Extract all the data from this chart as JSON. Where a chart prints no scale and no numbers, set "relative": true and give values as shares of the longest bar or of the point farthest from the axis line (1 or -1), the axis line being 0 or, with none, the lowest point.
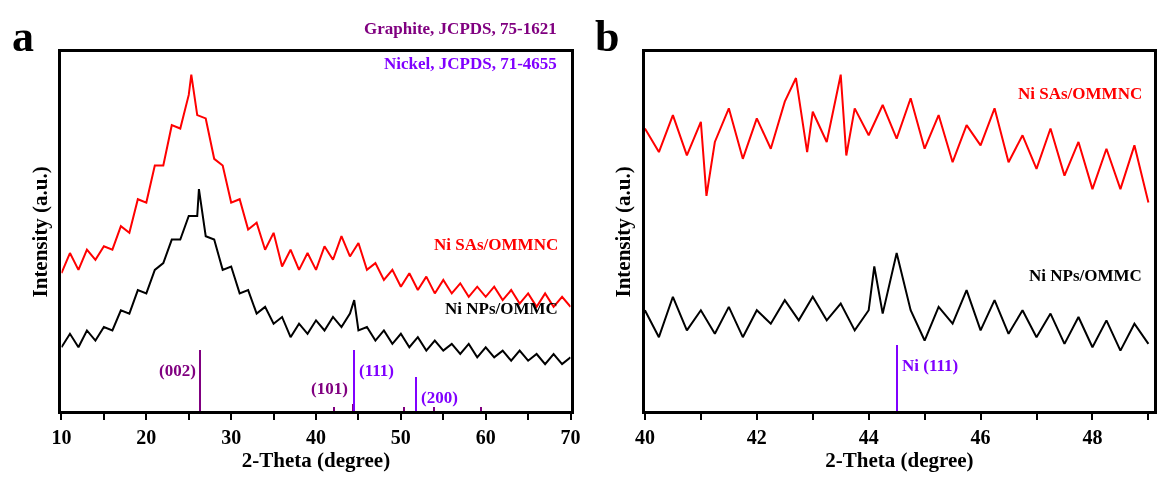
{
  "chart_data": [
    {
      "type": "line",
      "xlabel": "2-Theta (degree)",
      "ylabel": "Intensity (a.u.)",
      "relative": true,
      "legend": false,
      "marker": "none",
      "line_style": "solid",
      "xlim": [
        10,
        70
      ],
      "xticks": [
        10,
        {
          "value": 15,
          "label": null
        },
        20,
        {
          "value": 25,
          "label": null
        },
        30,
        {
          "value": 35,
          "label": null
        },
        40,
        {
          "value": 45,
          "label": null
        },
        50,
        {
          "value": 55,
          "label": null
        },
        60,
        {
          "value": 65,
          "label": null
        },
        70
      ],
      "annotations": [
        "a",
        {
          "text": "(002)",
          "x": 26.4,
          "y": 0.18
        },
        {
          "text": "(101)",
          "x": 44.4,
          "y": 0.02
        },
        {
          "text": "(111)",
          "x": 44.5,
          "y": 0.18
        },
        {
          "text": "(200)",
          "x": 51.8,
          "y": 0.1
        }
      ],
      "series": [
        {
          "name": "Ni SAs/OMMNC",
          "color": "#ff0000",
          "x": [
            10,
            11,
            12,
            13,
            14,
            15,
            16,
            17,
            18,
            19,
            20,
            21,
            22,
            23,
            24,
            25,
            25.3,
            26,
            27,
            28,
            29,
            30,
            31,
            32,
            33,
            34,
            35,
            36,
            37,
            38,
            39,
            40,
            41,
            42,
            43,
            44,
            45,
            46,
            47,
            48,
            49,
            50,
            51,
            52,
            53,
            54,
            55,
            56,
            57,
            58,
            59,
            60,
            61,
            62,
            63,
            64,
            65,
            66,
            67,
            68,
            69,
            70
          ],
          "values": [
            0.41,
            0.47,
            0.42,
            0.48,
            0.45,
            0.49,
            0.48,
            0.55,
            0.53,
            0.63,
            0.62,
            0.73,
            0.73,
            0.85,
            0.84,
            0.94,
            1.0,
            0.88,
            0.87,
            0.75,
            0.73,
            0.62,
            0.63,
            0.54,
            0.56,
            0.48,
            0.53,
            0.43,
            0.48,
            0.42,
            0.47,
            0.42,
            0.49,
            0.45,
            0.52,
            0.46,
            0.5,
            0.42,
            0.44,
            0.39,
            0.42,
            0.37,
            0.41,
            0.36,
            0.4,
            0.35,
            0.39,
            0.35,
            0.38,
            0.34,
            0.37,
            0.34,
            0.37,
            0.33,
            0.36,
            0.32,
            0.35,
            0.31,
            0.35,
            0.31,
            0.34,
            0.31
          ]
        },
        {
          "name": "Ni NPs/OMMC",
          "color": "#000000",
          "x": [
            10,
            11,
            12,
            13,
            14,
            15,
            16,
            17,
            18,
            19,
            20,
            21,
            22,
            23,
            24,
            25,
            26,
            26.2,
            27,
            28,
            29,
            30,
            31,
            32,
            33,
            34,
            35,
            36,
            37,
            38,
            39,
            40,
            41,
            42,
            43,
            44,
            44.5,
            45,
            46,
            47,
            48,
            49,
            50,
            51,
            52,
            53,
            54,
            55,
            56,
            57,
            58,
            59,
            60,
            61,
            62,
            63,
            64,
            65,
            66,
            67,
            68,
            69,
            70
          ],
          "values": [
            0.19,
            0.23,
            0.19,
            0.24,
            0.21,
            0.25,
            0.24,
            0.3,
            0.29,
            0.36,
            0.35,
            0.42,
            0.44,
            0.51,
            0.51,
            0.58,
            0.58,
            0.66,
            0.52,
            0.51,
            0.42,
            0.43,
            0.35,
            0.36,
            0.29,
            0.31,
            0.26,
            0.28,
            0.22,
            0.26,
            0.23,
            0.27,
            0.24,
            0.28,
            0.25,
            0.29,
            0.33,
            0.24,
            0.25,
            0.21,
            0.24,
            0.2,
            0.23,
            0.19,
            0.22,
            0.18,
            0.21,
            0.18,
            0.2,
            0.17,
            0.2,
            0.16,
            0.19,
            0.16,
            0.18,
            0.15,
            0.18,
            0.15,
            0.17,
            0.14,
            0.17,
            0.14,
            0.16
          ]
        },
        {
          "type": "bar",
          "name": "Graphite, JCPDS, 75-1621",
          "color": "#800080",
          "x": [
            26.4,
            42.2,
            44.4,
            50.4,
            54.0,
            59.5
          ],
          "values": [
            0.18,
            0.01,
            0.02,
            0.01,
            0.01,
            0.01
          ]
        },
        {
          "type": "bar",
          "name": "Nickel, JCPDS, 71-4655",
          "color": "#8000ff",
          "x": [
            44.5,
            51.8
          ],
          "values": [
            0.18,
            0.1
          ]
        }
      ]
    },
    {
      "type": "line",
      "xlabel": "2-Theta (degree)",
      "ylabel": "Intensity (a.u.)",
      "relative": true,
      "legend": false,
      "marker": "none",
      "line_style": "solid",
      "xlim": [
        40,
        49.1
      ],
      "xticks": [
        40,
        {
          "value": 41,
          "label": null
        },
        42,
        {
          "value": 43,
          "label": null
        },
        44,
        {
          "value": 45,
          "label": null
        },
        46,
        {
          "value": 47,
          "label": null
        },
        48,
        {
          "value": 49,
          "label": null
        }
      ],
      "annotations": [
        "b",
        {
          "text": "Ni (111)",
          "x": 44.5,
          "y": 0.195
        }
      ],
      "series": [
        {
          "name": "Ni SAs/OMMNC",
          "color": "#ff0000",
          "x": [
            40,
            40.25,
            40.5,
            40.75,
            41,
            41.1,
            41.25,
            41.5,
            41.75,
            42,
            42.25,
            42.5,
            42.7,
            42.9,
            43,
            43.25,
            43.5,
            43.6,
            43.75,
            44,
            44.25,
            44.5,
            44.75,
            45,
            45.25,
            45.5,
            45.75,
            46,
            46.25,
            46.5,
            46.75,
            47,
            47.25,
            47.5,
            47.75,
            48,
            48.25,
            48.5,
            48.75,
            49
          ],
          "values": [
            0.84,
            0.77,
            0.88,
            0.76,
            0.86,
            0.64,
            0.8,
            0.9,
            0.75,
            0.87,
            0.78,
            0.92,
            0.99,
            0.77,
            0.89,
            0.8,
            1.0,
            0.76,
            0.9,
            0.82,
            0.91,
            0.81,
            0.93,
            0.78,
            0.88,
            0.74,
            0.85,
            0.79,
            0.9,
            0.74,
            0.82,
            0.72,
            0.84,
            0.7,
            0.8,
            0.66,
            0.78,
            0.66,
            0.79,
            0.62
          ]
        },
        {
          "name": "Ni NPs/OMMC",
          "color": "#000000",
          "x": [
            40,
            40.25,
            40.5,
            40.75,
            41,
            41.25,
            41.5,
            41.75,
            42,
            42.25,
            42.5,
            42.75,
            43,
            43.25,
            43.5,
            43.75,
            44,
            44.1,
            44.25,
            44.5,
            44.75,
            45,
            45.25,
            45.5,
            45.75,
            46,
            46.25,
            46.5,
            46.75,
            47,
            47.25,
            47.5,
            47.75,
            48,
            48.25,
            48.5,
            48.75,
            49
          ],
          "values": [
            0.3,
            0.22,
            0.34,
            0.24,
            0.3,
            0.23,
            0.31,
            0.22,
            0.3,
            0.26,
            0.33,
            0.27,
            0.34,
            0.27,
            0.32,
            0.24,
            0.3,
            0.43,
            0.29,
            0.47,
            0.3,
            0.21,
            0.31,
            0.26,
            0.36,
            0.24,
            0.33,
            0.23,
            0.3,
            0.22,
            0.29,
            0.2,
            0.28,
            0.19,
            0.27,
            0.18,
            0.26,
            0.2
          ]
        },
        {
          "type": "bar",
          "color": "#8000ff",
          "x": [
            44.5
          ],
          "values": [
            0.195
          ]
        }
      ]
    }
  ]
}
